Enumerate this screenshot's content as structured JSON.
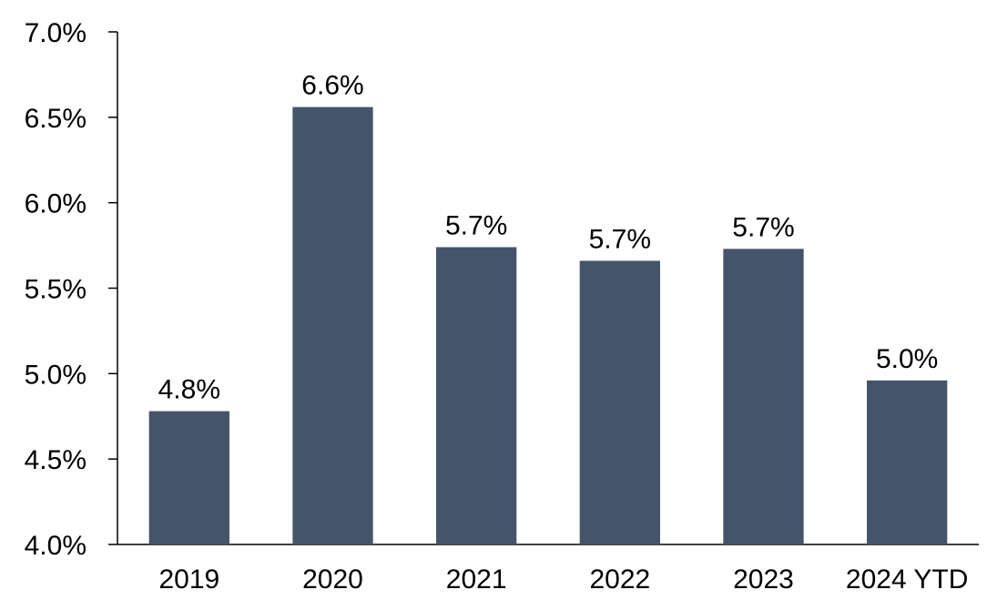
{
  "chart_data": {
    "type": "bar",
    "title": "",
    "xlabel": "",
    "ylabel": "",
    "categories": [
      "2019",
      "2020",
      "2021",
      "2022",
      "2023",
      "2024 YTD"
    ],
    "values": [
      4.78,
      6.56,
      5.74,
      5.66,
      5.73,
      4.96
    ],
    "data_labels": [
      "4.8%",
      "6.6%",
      "5.7%",
      "5.7%",
      "5.7%",
      "5.0%"
    ],
    "ylim": [
      4.0,
      7.0
    ],
    "yticks": [
      4.0,
      4.5,
      5.0,
      5.5,
      6.0,
      6.5,
      7.0
    ],
    "ytick_labels": [
      "4.0%",
      "4.5%",
      "5.0%",
      "5.5%",
      "6.0%",
      "6.5%",
      "7.0%"
    ],
    "bar_color": "#44546A",
    "grid": false,
    "legend": "none"
  }
}
